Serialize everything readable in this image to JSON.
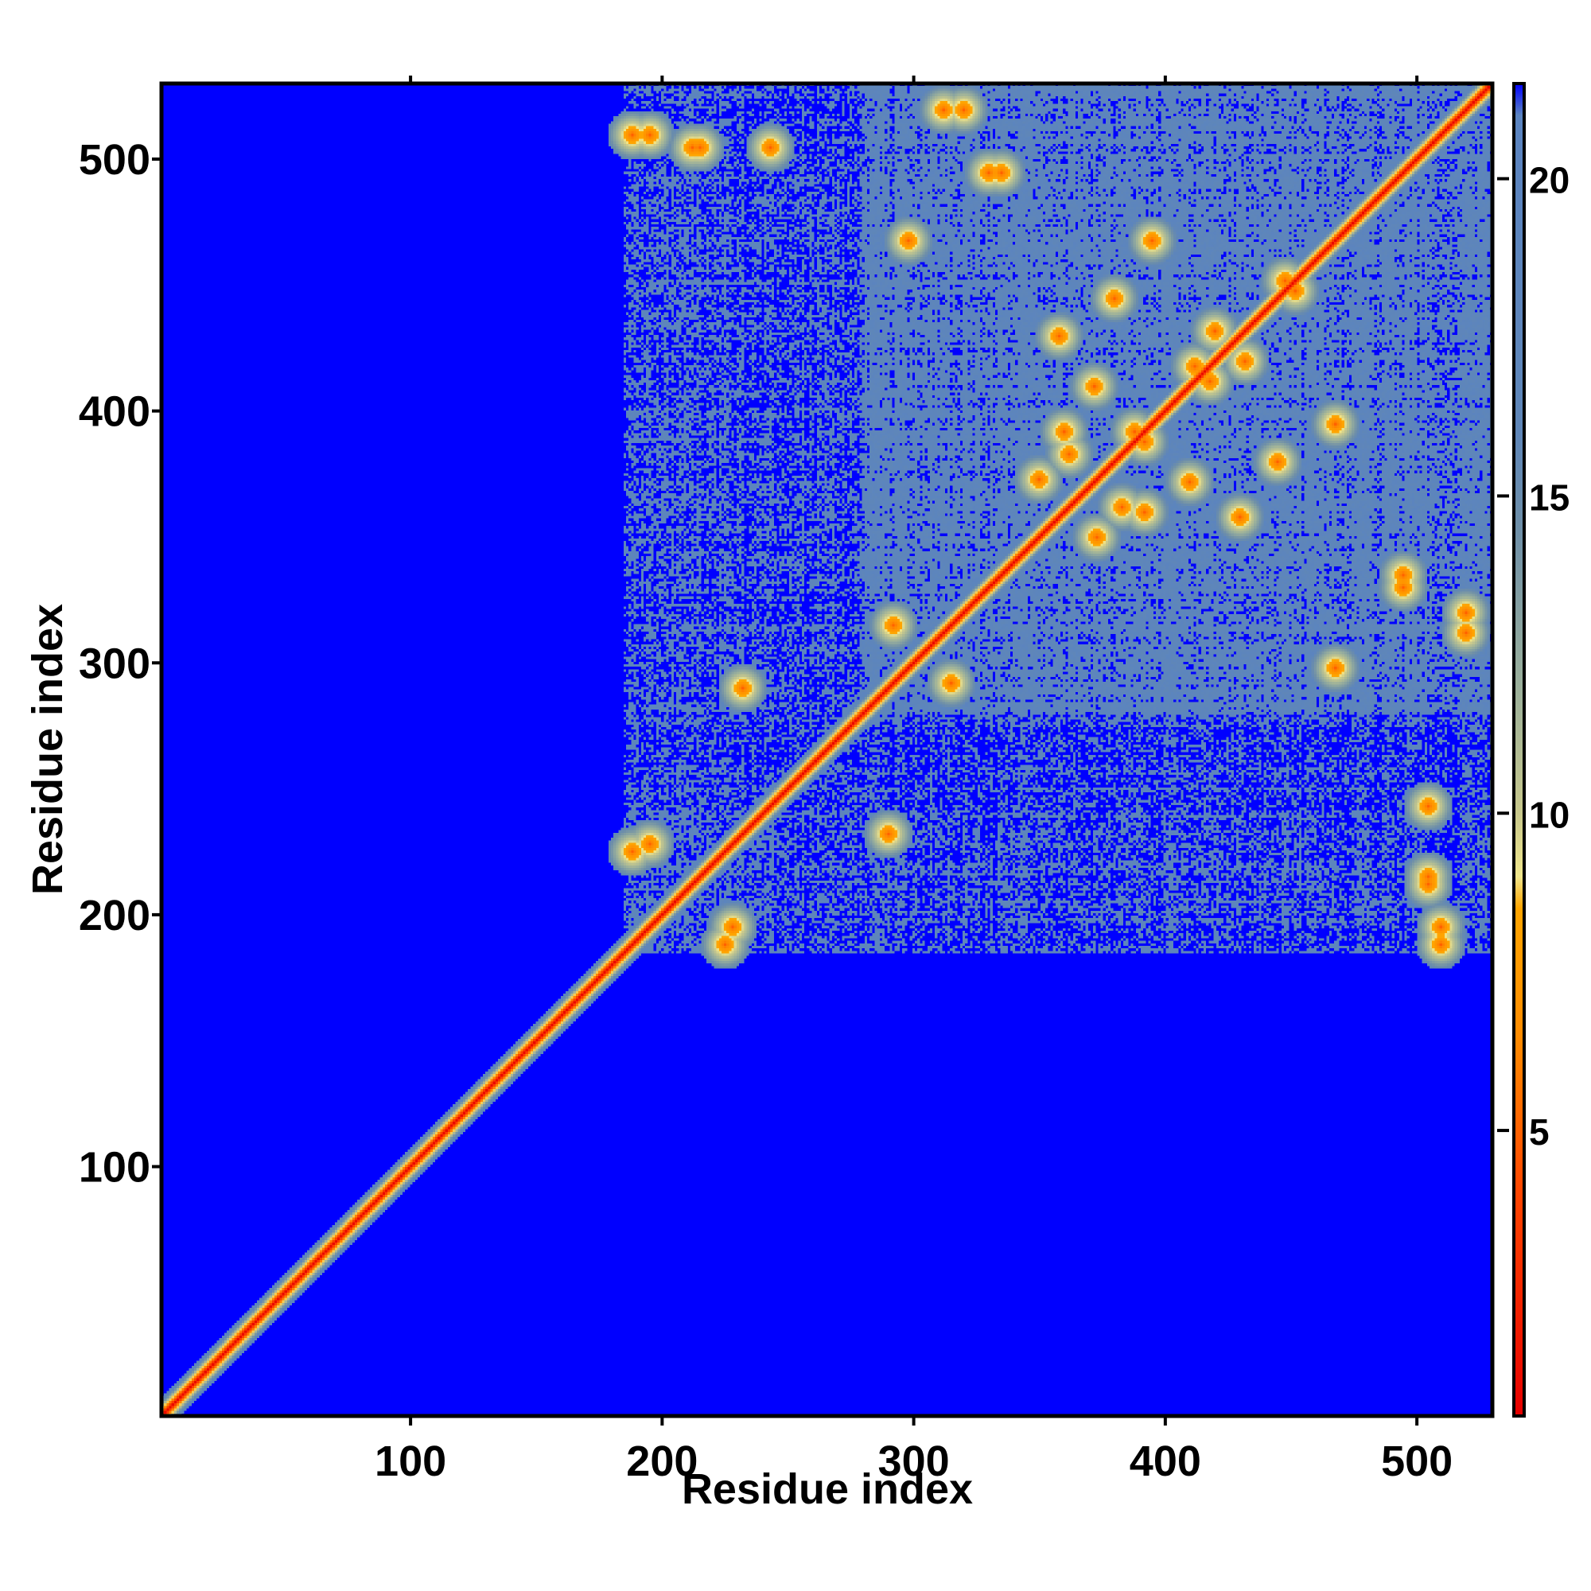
{
  "chart_data": {
    "type": "heatmap",
    "xlabel": "Residue index",
    "ylabel": "Residue index",
    "xlim": [
      1,
      530
    ],
    "ylim": [
      1,
      530
    ],
    "x_ticks": [
      100,
      200,
      300,
      400,
      500
    ],
    "y_ticks": [
      100,
      200,
      300,
      400,
      500
    ],
    "top_ticks": [
      100,
      200,
      300,
      400,
      500
    ],
    "colorbar": {
      "range": [
        0.5,
        21.5
      ],
      "ticks": [
        5,
        10,
        15,
        20
      ],
      "stops": [
        {
          "value": 0.5,
          "color": "#e60000"
        },
        {
          "value": 4,
          "color": "#ff4500"
        },
        {
          "value": 6.5,
          "color": "#ff8c00"
        },
        {
          "value": 8.5,
          "color": "#ffa500"
        },
        {
          "value": 9,
          "color": "#f0e68c"
        },
        {
          "value": 10,
          "color": "#c8c88c"
        },
        {
          "value": 12,
          "color": "#9bb09b"
        },
        {
          "value": 14.5,
          "color": "#6e8fa8"
        },
        {
          "value": 16,
          "color": "#5f86b8"
        },
        {
          "value": 21,
          "color": "#5b84c0"
        },
        {
          "value": 21.5,
          "color": "#0000ff"
        }
      ]
    },
    "background_value": 21.5,
    "diagonal_band": {
      "start": 1,
      "end": 530,
      "width": 4
    },
    "contact_regions": [
      {
        "x": [
          185,
          530
        ],
        "y": [
          185,
          530
        ],
        "density": 0.5
      },
      {
        "x": [
          280,
          530
        ],
        "y": [
          280,
          530
        ],
        "density": 0.7
      },
      {
        "x": [
          185,
          250
        ],
        "y": [
          185,
          250
        ],
        "density": 0.55
      },
      {
        "x": [
          185,
          255
        ],
        "y": [
          265,
          330
        ],
        "density": 0.45
      },
      {
        "x": [
          185,
          255
        ],
        "y": [
          335,
          530
        ],
        "density": 0.4
      },
      {
        "x": [
          265,
          530
        ],
        "y": [
          185,
          250
        ],
        "density": 0.45
      }
    ],
    "hotspots": [
      {
        "x": 468,
        "y": 298
      },
      {
        "x": 410,
        "y": 372
      },
      {
        "x": 420,
        "y": 432
      },
      {
        "x": 448,
        "y": 452
      },
      {
        "x": 412,
        "y": 418
      },
      {
        "x": 445,
        "y": 380
      },
      {
        "x": 360,
        "y": 392
      },
      {
        "x": 392,
        "y": 388
      },
      {
        "x": 430,
        "y": 358
      },
      {
        "x": 495,
        "y": 335
      },
      {
        "x": 520,
        "y": 312
      },
      {
        "x": 395,
        "y": 468
      },
      {
        "x": 330,
        "y": 495
      },
      {
        "x": 320,
        "y": 520
      },
      {
        "x": 232,
        "y": 290
      },
      {
        "x": 225,
        "y": 188
      },
      {
        "x": 195,
        "y": 228
      },
      {
        "x": 290,
        "y": 232
      },
      {
        "x": 350,
        "y": 373
      },
      {
        "x": 383,
        "y": 362
      },
      {
        "x": 315,
        "y": 292
      },
      {
        "x": 510,
        "y": 188
      },
      {
        "x": 505,
        "y": 212
      },
      {
        "x": 195,
        "y": 510
      },
      {
        "x": 243,
        "y": 505
      },
      {
        "x": 215,
        "y": 505
      }
    ]
  }
}
